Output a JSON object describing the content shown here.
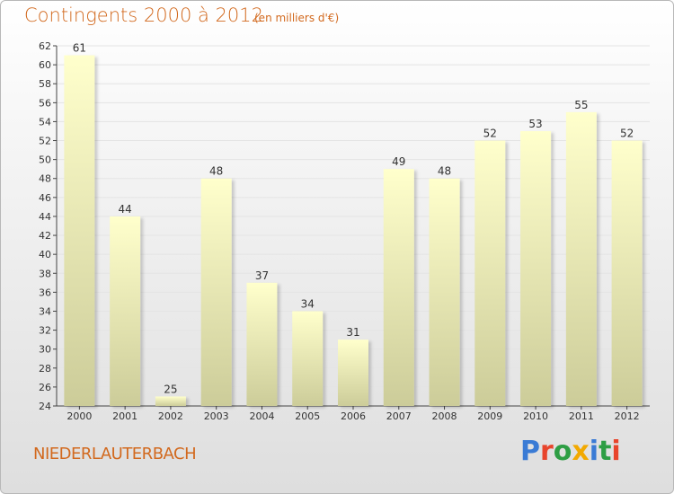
{
  "header": {
    "title": "Contingents 2000 à 2012",
    "unit": "(en milliers d'€)"
  },
  "footer": {
    "town": "NIEDERLAUTERBACH",
    "brand": "Proxiti",
    "brand_colors": [
      "#3a7bd5",
      "#e8452c",
      "#2e9e44",
      "#f2a900",
      "#3a7bd5",
      "#2e9e44",
      "#e8452c"
    ]
  },
  "colors": {
    "bar_top": "#ffffcc",
    "bar_bottom": "#cccc99",
    "title": "#d2691e"
  },
  "chart_data": {
    "type": "bar",
    "title": "Contingents 2000 à 2012",
    "subtitle": "(en milliers d'€)",
    "categories": [
      "2000",
      "2001",
      "2002",
      "2003",
      "2004",
      "2005",
      "2006",
      "2007",
      "2008",
      "2009",
      "2010",
      "2011",
      "2012"
    ],
    "values": [
      61,
      44,
      25,
      48,
      37,
      34,
      31,
      49,
      48,
      52,
      53,
      55,
      52
    ],
    "ylim": [
      24,
      62
    ],
    "yticks": [
      24,
      26,
      28,
      30,
      32,
      34,
      36,
      38,
      40,
      42,
      44,
      46,
      48,
      50,
      52,
      54,
      56,
      58,
      60,
      62
    ],
    "grid": true,
    "legend": "none"
  }
}
